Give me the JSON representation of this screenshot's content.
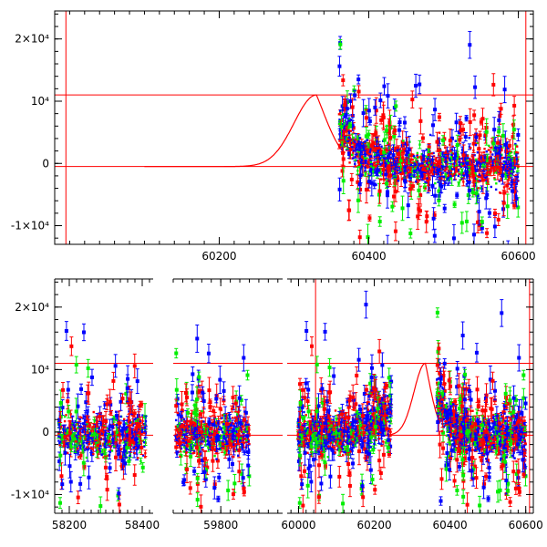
{
  "chart_data": [
    {
      "type": "scatter",
      "title": "",
      "xlabel": "",
      "ylabel": "",
      "xlim": [
        59980,
        60620
      ],
      "ylim": [
        -13000,
        24500
      ],
      "grid": false,
      "x_ticks": [
        {
          "value": 60200,
          "label": "60200"
        },
        {
          "value": 60400,
          "label": "60400"
        },
        {
          "value": 60600,
          "label": "60600"
        }
      ],
      "y_ticks": [
        {
          "value": 20000,
          "label": "2×10⁴"
        },
        {
          "value": 10000,
          "label": "10⁴"
        },
        {
          "value": 0,
          "label": "0"
        },
        {
          "value": -10000,
          "label": "-1×10⁴"
        }
      ],
      "reference_lines": {
        "horizontal": [
          11000,
          -500
        ],
        "vertical": [
          59995,
          60610
        ]
      },
      "model_curve": {
        "baseline": -500,
        "peak_x": 60330,
        "peak_y": 11000,
        "end_x": 60365
      },
      "data_region": {
        "x_start": 60360,
        "x_end": 60600
      },
      "series": [
        {
          "color": "#0000ff"
        },
        {
          "color": "#ff0000"
        },
        {
          "color": "#00ee00"
        }
      ]
    },
    {
      "type": "scatter",
      "title": "",
      "xlabel": "",
      "ylabel": "",
      "ylim": [
        -13000,
        24500
      ],
      "grid": false,
      "broken_axis": true,
      "segments": [
        {
          "xlim": [
            58160,
            58430
          ],
          "x_ticks": [
            {
              "value": 58200,
              "label": "58200"
            },
            {
              "value": 58400,
              "label": "58400"
            }
          ],
          "data_region": [
            58170,
            58410
          ]
        },
        {
          "xlim": [
            59700,
            59930
          ],
          "x_ticks": [
            {
              "value": 59800,
              "label": "59800"
            }
          ],
          "data_region": [
            59705,
            59860
          ]
        },
        {
          "xlim": [
            59970,
            60620
          ],
          "x_ticks": [
            {
              "value": 60000,
              "label": "60000"
            },
            {
              "value": 60200,
              "label": "60200"
            },
            {
              "value": 60400,
              "label": "60400"
            },
            {
              "value": 60600,
              "label": "60600"
            }
          ],
          "data_regions": [
            [
              59998,
              60245
            ],
            [
              60365,
              60600
            ]
          ]
        }
      ],
      "y_ticks": [
        {
          "value": 20000,
          "label": "2×10⁴"
        },
        {
          "value": 10000,
          "label": "10⁴"
        },
        {
          "value": 0,
          "label": "0"
        },
        {
          "value": -10000,
          "label": "-1×10⁴"
        }
      ],
      "reference_lines": {
        "horizontal": [
          11000,
          -500
        ],
        "vertical": [
          60045,
          60610
        ]
      },
      "model_curve": {
        "baseline": -500,
        "peak_x": 60335,
        "peak_y": 11000,
        "start_x": 60235,
        "end_x": 60368
      },
      "series": [
        {
          "color": "#0000ff"
        },
        {
          "color": "#ff0000"
        },
        {
          "color": "#00ee00"
        }
      ]
    }
  ]
}
